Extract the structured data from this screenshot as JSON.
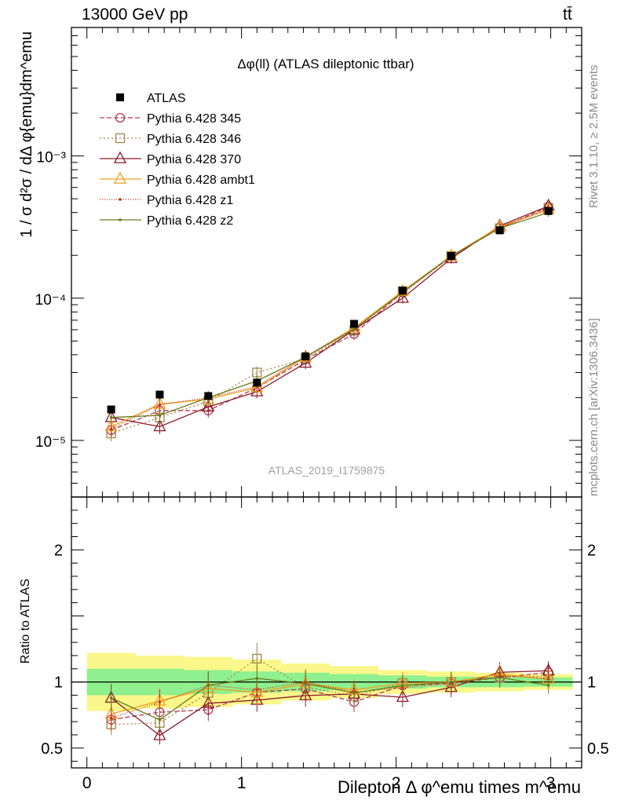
{
  "header": {
    "left": "13000 GeV pp",
    "right": "tt̄"
  },
  "side_labels": {
    "rivet": "Rivet 3.1.10, ≥ 2.5M events",
    "mcplots": "mcplots.cern.ch [arXiv:1306.3436]"
  },
  "chart_data": {
    "type": "line",
    "title": "Δφ(ll) (ATLAS dileptonic ttbar)",
    "analysis_label": "ATLAS_2019_I1759875",
    "xlabel": "Dilepton Δ φ^emu times m^emu",
    "ylabel": "1 / σ  d²σ / dΔ φ{emu}dm^emu",
    "ratio_ylabel": "Ratio to ATLAS",
    "xlim": [
      -0.1,
      3.2
    ],
    "ylim": [
      4e-06,
      0.008
    ],
    "yscale": "log",
    "ratio_ylim": [
      0.35,
      2.4
    ],
    "x_ticks": [
      "0",
      "1",
      "2",
      "3"
    ],
    "y_ticks": [
      "10⁻⁵",
      "10⁻⁴",
      "10⁻³"
    ],
    "ratio_y_ticks": [
      "0.5",
      "1",
      "2"
    ],
    "legend_position": "top-left",
    "x": [
      0.157,
      0.471,
      0.785,
      1.1,
      1.414,
      1.728,
      2.042,
      2.356,
      2.67,
      2.985
    ],
    "bin_edges": [
      0,
      0.314,
      0.628,
      0.942,
      1.257,
      1.571,
      1.885,
      2.199,
      2.513,
      2.827,
      3.142
    ],
    "data": {
      "name": "ATLAS",
      "values": [
        1.65e-05,
        2.1e-05,
        2.05e-05,
        2.55e-05,
        3.9e-05,
        6.6e-05,
        0.000113,
        0.000198,
        0.0003,
        0.00041
      ],
      "band_inner": [
        0.1,
        0.1,
        0.09,
        0.08,
        0.07,
        0.06,
        0.05,
        0.04,
        0.04,
        0.035
      ],
      "band_outer": [
        0.22,
        0.2,
        0.19,
        0.17,
        0.14,
        0.12,
        0.09,
        0.08,
        0.07,
        0.06
      ]
    },
    "series": [
      {
        "name": "Pythia 6.428 345",
        "color": "#b5394f",
        "dash": "6,3",
        "marker": "circle",
        "values": [
          1.18e-05,
          1.62e-05,
          1.62e-05,
          2.35e-05,
          3.7e-05,
          5.6e-05,
          0.00011,
          0.000196,
          0.00031,
          0.00044
        ]
      },
      {
        "name": "Pythia 6.428 346",
        "color": "#a0874a",
        "dash": "2,3",
        "marker": "square",
        "values": [
          1.12e-05,
          1.45e-05,
          1.88e-05,
          3e-05,
          3.75e-05,
          5.9e-05,
          0.000112,
          0.000198,
          0.00031,
          0.00043
        ]
      },
      {
        "name": "Pythia 6.428 370",
        "color": "#8b1a2a",
        "dash": "",
        "marker": "triangle",
        "values": [
          1.45e-05,
          1.25e-05,
          1.72e-05,
          2.2e-05,
          3.5e-05,
          6e-05,
          0.0001,
          0.00019,
          0.000322,
          0.000445
        ]
      },
      {
        "name": "Pythia 6.428 ambt1",
        "color": "#f0a020",
        "dash": "",
        "marker": "triangle",
        "values": [
          1.25e-05,
          1.8e-05,
          1.95e-05,
          2.35e-05,
          3.85e-05,
          6.2e-05,
          0.000112,
          0.000198,
          0.000318,
          0.00042
        ]
      },
      {
        "name": "Pythia 6.428 z1",
        "color": "#d03010",
        "dash": "1,2",
        "marker": "dot",
        "values": [
          1.2e-05,
          1.78e-05,
          2e-05,
          2.4e-05,
          3.9e-05,
          6.1e-05,
          0.000108,
          0.000196,
          0.000315,
          0.00042
        ]
      },
      {
        "name": "Pythia 6.428 z2",
        "color": "#6b7a1a",
        "dash": "",
        "marker": "dot",
        "values": [
          1.45e-05,
          1.5e-05,
          2e-05,
          2.62e-05,
          3.85e-05,
          6.05e-05,
          0.00011,
          0.000198,
          0.00031,
          0.0004
        ]
      }
    ]
  }
}
